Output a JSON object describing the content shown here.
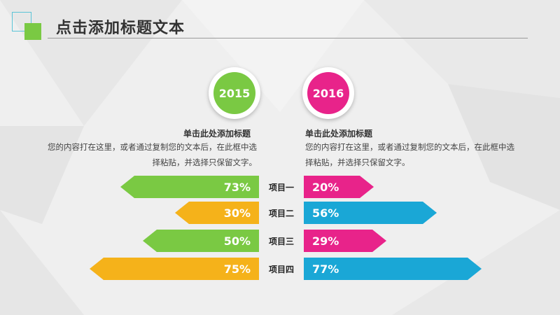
{
  "header": {
    "title": "点击添加标题文本"
  },
  "years": [
    {
      "label": "2015",
      "color": "#7ac943"
    },
    {
      "label": "2016",
      "color": "#e8238a"
    }
  ],
  "captions": [
    {
      "title": "单击此处添加标题",
      "body": "您的内容打在这里，或者通过复制您的文本后，在此框中选择粘贴，并选择只保留文字。"
    },
    {
      "title": "单击此处添加标题",
      "body": "您的内容打在这里，或者通过复制您的文本后，在此框中选择粘贴，并选择只保留文字。"
    }
  ],
  "items": [
    {
      "label": "项目一",
      "left": "73%",
      "right": "20%",
      "left_color": "#7ac943",
      "right_color": "#e8238a"
    },
    {
      "label": "项目二",
      "left": "30%",
      "right": "56%",
      "left_color": "#f5b21a",
      "right_color": "#1aa7d6"
    },
    {
      "label": "项目三",
      "left": "50%",
      "right": "29%",
      "left_color": "#7ac943",
      "right_color": "#e8238a"
    },
    {
      "label": "项目四",
      "left": "75%",
      "right": "77%",
      "left_color": "#f5b21a",
      "right_color": "#1aa7d6"
    }
  ]
}
